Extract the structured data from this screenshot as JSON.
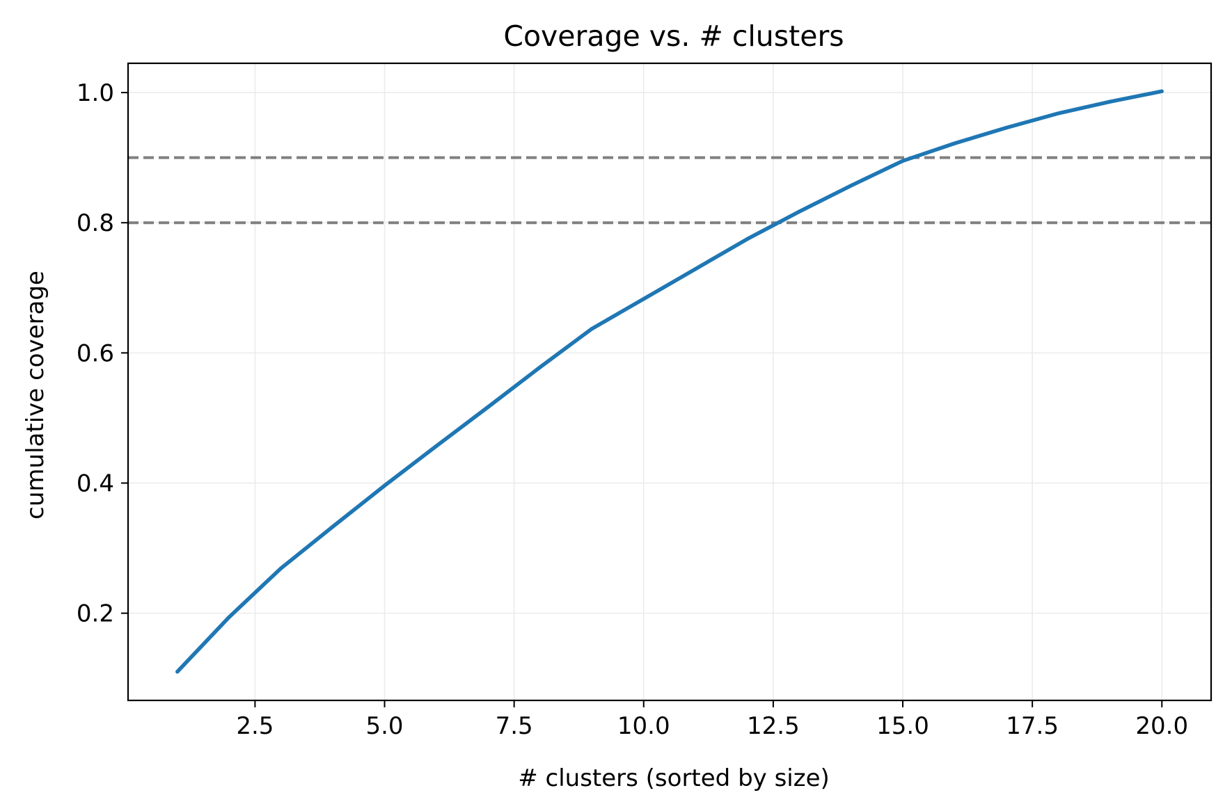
{
  "chart_data": {
    "type": "line",
    "title": "Coverage vs. # clusters",
    "xlabel": "# clusters (sorted by size)",
    "ylabel": "cumulative coverage",
    "xlim": [
      0.05,
      20.95
    ],
    "ylim": [
      0.066,
      1.045
    ],
    "xticks": [
      2.5,
      5.0,
      7.5,
      10.0,
      12.5,
      15.0,
      17.5,
      20.0
    ],
    "xtick_labels": [
      "2.5",
      "5.0",
      "7.5",
      "10.0",
      "12.5",
      "15.0",
      "17.5",
      "20.0"
    ],
    "yticks": [
      0.2,
      0.4,
      0.6,
      0.8,
      1.0
    ],
    "ytick_labels": [
      "0.2",
      "0.4",
      "0.6",
      "0.8",
      "1.0"
    ],
    "grid": true,
    "series": [
      {
        "color": "#1f77b4",
        "x": [
          1,
          2,
          3,
          4,
          5,
          6,
          7,
          8,
          9,
          10,
          11,
          12,
          13,
          14,
          15,
          16,
          17,
          18,
          19,
          20
        ],
        "values": [
          0.11,
          0.194,
          0.269,
          0.333,
          0.396,
          0.457,
          0.517,
          0.578,
          0.637,
          0.683,
          0.729,
          0.775,
          0.817,
          0.857,
          0.895,
          0.922,
          0.946,
          0.968,
          0.986,
          1.002
        ]
      }
    ],
    "reference_lines": [
      {
        "orientation": "horizontal",
        "y": 0.9,
        "style": "dashed",
        "color": "#808080"
      },
      {
        "orientation": "horizontal",
        "y": 0.8,
        "style": "dashed",
        "color": "#808080"
      }
    ],
    "colors": {
      "line": "#1f77b4",
      "reference": "#808080",
      "grid": "#ebebeb",
      "axes": "#000000"
    }
  }
}
